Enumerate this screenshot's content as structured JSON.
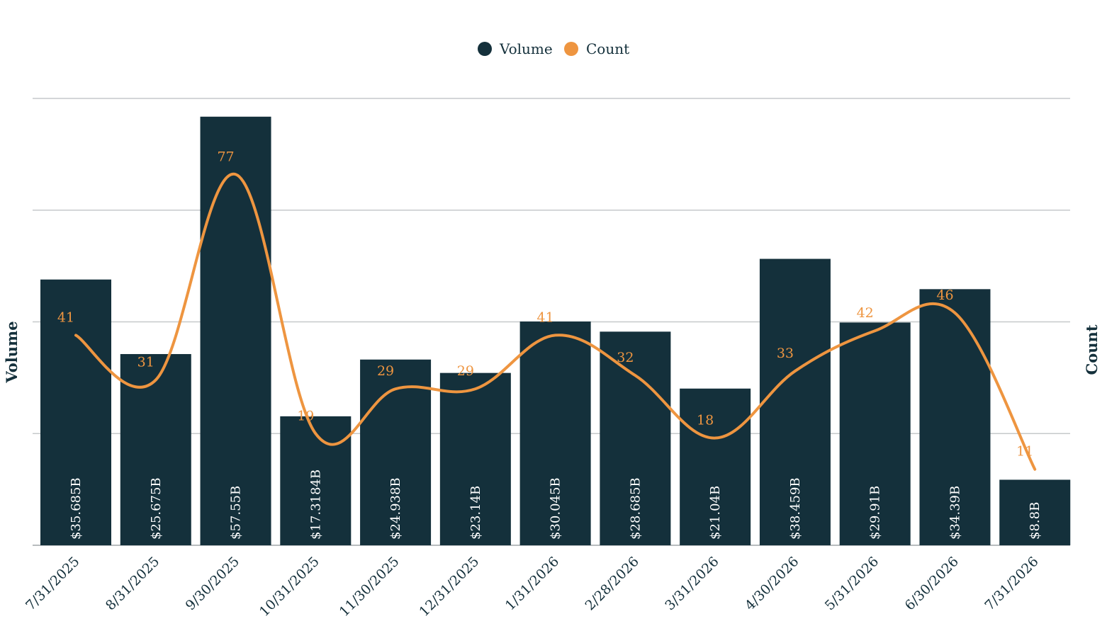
{
  "chart_data": {
    "type": "bar",
    "categories": [
      "7/31/2025",
      "8/31/2025",
      "9/30/2025",
      "10/31/2025",
      "11/30/2025",
      "12/31/2025",
      "1/31/2026",
      "2/28/2026",
      "3/31/2026",
      "4/30/2026",
      "5/31/2026",
      "6/30/2026",
      "7/31/2026"
    ],
    "series": [
      {
        "name": "Volume",
        "kind": "bar",
        "axis": "left",
        "color": "#14303b",
        "values": [
          35.685,
          25.675,
          57.55,
          17.3184,
          24.938,
          23.14,
          30.045,
          28.685,
          21.04,
          38.459,
          29.91,
          34.39,
          8.8
        ],
        "labels": [
          "$35.685B",
          "$25.675B",
          "$57.55B",
          "$17.3184B",
          "$24.938B",
          "$23.14B",
          "$30.045B",
          "$28.685B",
          "$21.04B",
          "$38.459B",
          "$29.91B",
          "$34.39B",
          "$8.8B"
        ]
      },
      {
        "name": "Count",
        "kind": "line",
        "axis": "right",
        "color": "#ee9540",
        "values": [
          41,
          31,
          77,
          19,
          29,
          29,
          41,
          32,
          18,
          33,
          42,
          46,
          11
        ],
        "labels": [
          "41",
          "31",
          "77",
          "19",
          "29",
          "29",
          "41",
          "32",
          "18",
          "33",
          "42",
          "46",
          "11"
        ]
      }
    ],
    "ylabel": "Volume",
    "y2label": "Count",
    "ylim": [
      0,
      60
    ],
    "y2lim": [
      -6,
      94
    ],
    "grid": true,
    "legend": "top-center",
    "line_style": "smooth"
  }
}
